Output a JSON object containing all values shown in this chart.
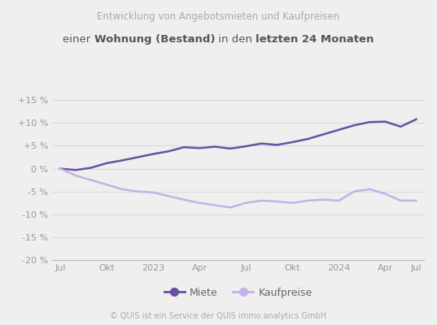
{
  "title_line1": "Entwicklung von Angebotsmieten und Kaufpreisen",
  "background_color": "#efefef",
  "plot_bg_color": "#efefef",
  "miete_color": "#6b4fa4",
  "kaufpreise_color": "#c3b1e8",
  "ylim": [
    -20,
    17
  ],
  "yticks": [
    -20,
    -15,
    -10,
    -5,
    0,
    5,
    10,
    15
  ],
  "ytick_labels": [
    "-20 %",
    "-15 %",
    "-10 %",
    "-5 %",
    "0 %",
    "+5 %",
    "+10 %",
    "+15 %"
  ],
  "xtick_labels": [
    "Jul",
    "Okt",
    "2023",
    "Apr",
    "Jul",
    "Okt",
    "2024",
    "Apr",
    "Jul"
  ],
  "xtick_positions": [
    0,
    3,
    6,
    9,
    12,
    15,
    18,
    21,
    23
  ],
  "copyright": "© QUIS ist ein Service der QUIS immo.analytics GmbH",
  "legend_miete": "Miete",
  "legend_kaufpreise": "Kaufpreise",
  "miete_data": [
    0.0,
    -0.3,
    0.2,
    1.2,
    1.8,
    2.5,
    3.2,
    3.8,
    4.7,
    4.5,
    4.8,
    4.4,
    4.9,
    5.5,
    5.2,
    5.8,
    6.5,
    7.5,
    8.5,
    9.5,
    10.2,
    10.3,
    9.2,
    10.8
  ],
  "kaufpreise_data": [
    0.0,
    -1.5,
    -2.5,
    -3.5,
    -4.5,
    -5.0,
    -5.2,
    -6.0,
    -6.8,
    -7.5,
    -8.0,
    -8.5,
    -7.5,
    -7.0,
    -7.2,
    -7.5,
    -7.0,
    -6.8,
    -7.0,
    -5.0,
    -4.5,
    -5.5,
    -7.0,
    -7.0
  ]
}
